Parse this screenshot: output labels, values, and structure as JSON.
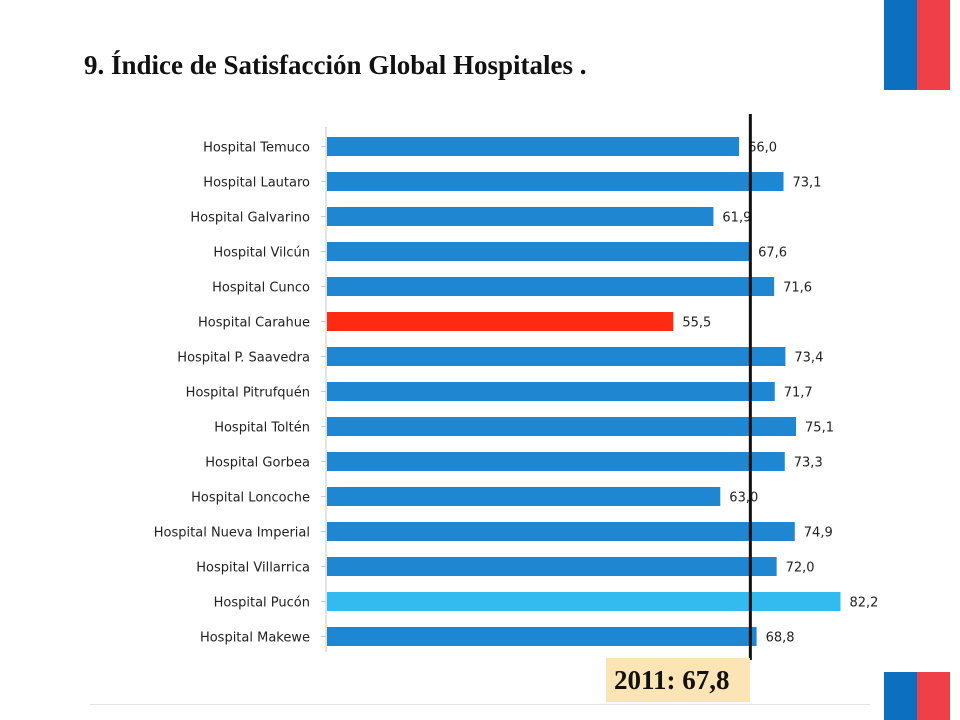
{
  "title": "9.  Índice de Satisfacción Global Hospitales .",
  "colors": {
    "bar_default": "#1f86d1",
    "bar_highlight_low": "#ff2a12",
    "bar_highlight_high": "#33bbf0",
    "reference_line": "#111111",
    "annotation_bg": "#fce4b4",
    "flag_blue": "#0c6fc0",
    "flag_red": "#ef3f48"
  },
  "chart_data": {
    "type": "bar",
    "orientation": "horizontal",
    "categories": [
      "Hospital Temuco",
      "Hospital Lautaro",
      "Hospital Galvarino",
      "Hospital Vilcún",
      "Hospital Cunco",
      "Hospital Carahue",
      "Hospital P. Saavedra",
      "Hospital Pitrufquén",
      "Hospital Toltén",
      "Hospital Gorbea",
      "Hospital Loncoche",
      "Hospital Nueva Imperial",
      "Hospital Villarrica",
      "Hospital Pucón",
      "Hospital Makewe"
    ],
    "values": [
      66.0,
      73.1,
      61.9,
      67.6,
      71.6,
      55.5,
      73.4,
      71.7,
      75.1,
      73.3,
      63.0,
      74.9,
      72.0,
      82.2,
      68.8
    ],
    "value_labels": [
      "66,0",
      "73,1",
      "61,9",
      "67,6",
      "71,6",
      "55,5",
      "73,4",
      "71,7",
      "75,1",
      "73,3",
      "63,0",
      "74,9",
      "72,0",
      "82,2",
      "68,8"
    ],
    "bar_colors": [
      "#1f86d1",
      "#1f86d1",
      "#1f86d1",
      "#1f86d1",
      "#1f86d1",
      "#ff2a12",
      "#1f86d1",
      "#1f86d1",
      "#1f86d1",
      "#1f86d1",
      "#1f86d1",
      "#1f86d1",
      "#1f86d1",
      "#33bbf0",
      "#1f86d1"
    ],
    "xlim": [
      0,
      85
    ],
    "reference_line": {
      "value": 67.8,
      "label": "2011: 67,8"
    },
    "grid": false,
    "legend": "none",
    "xlabel": "",
    "ylabel": ""
  }
}
